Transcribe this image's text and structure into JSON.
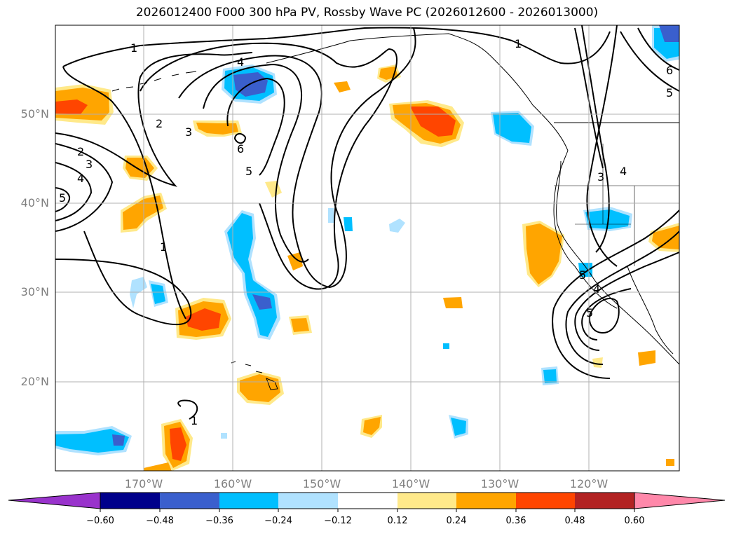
{
  "title": "2026012400 F000 300 hPa PV, Rossby Wave PC (2026012600 - 2026013000)",
  "lat_labels": [
    "50°N",
    "40°N",
    "30°N",
    "20°N"
  ],
  "lon_labels": [
    "170°W",
    "160°W",
    "150°W",
    "140°W",
    "130°W",
    "120°W"
  ],
  "colorbar": {
    "ticks": [
      "−0.60",
      "−0.48",
      "−0.36",
      "−0.24",
      "−0.12",
      "0.12",
      "0.24",
      "0.36",
      "0.48",
      "0.60"
    ],
    "colors": [
      "#9933cc",
      "#00008b",
      "#3a5fcd",
      "#00bfff",
      "#b0e2ff",
      "#ffffff",
      "#ffe98a",
      "#ffa500",
      "#ff4500",
      "#b22222",
      "#ff88aa"
    ]
  },
  "contour_labels": [
    "1",
    "1",
    "2",
    "2",
    "3",
    "3",
    "4",
    "4",
    "5",
    "5",
    "5",
    "5",
    "6",
    "6",
    "1",
    "1",
    "3",
    "4",
    "4",
    "5"
  ],
  "colors": {
    "grid": "#b0b0b0",
    "axis_label": "#7f7f7f",
    "contour": "#000000"
  }
}
